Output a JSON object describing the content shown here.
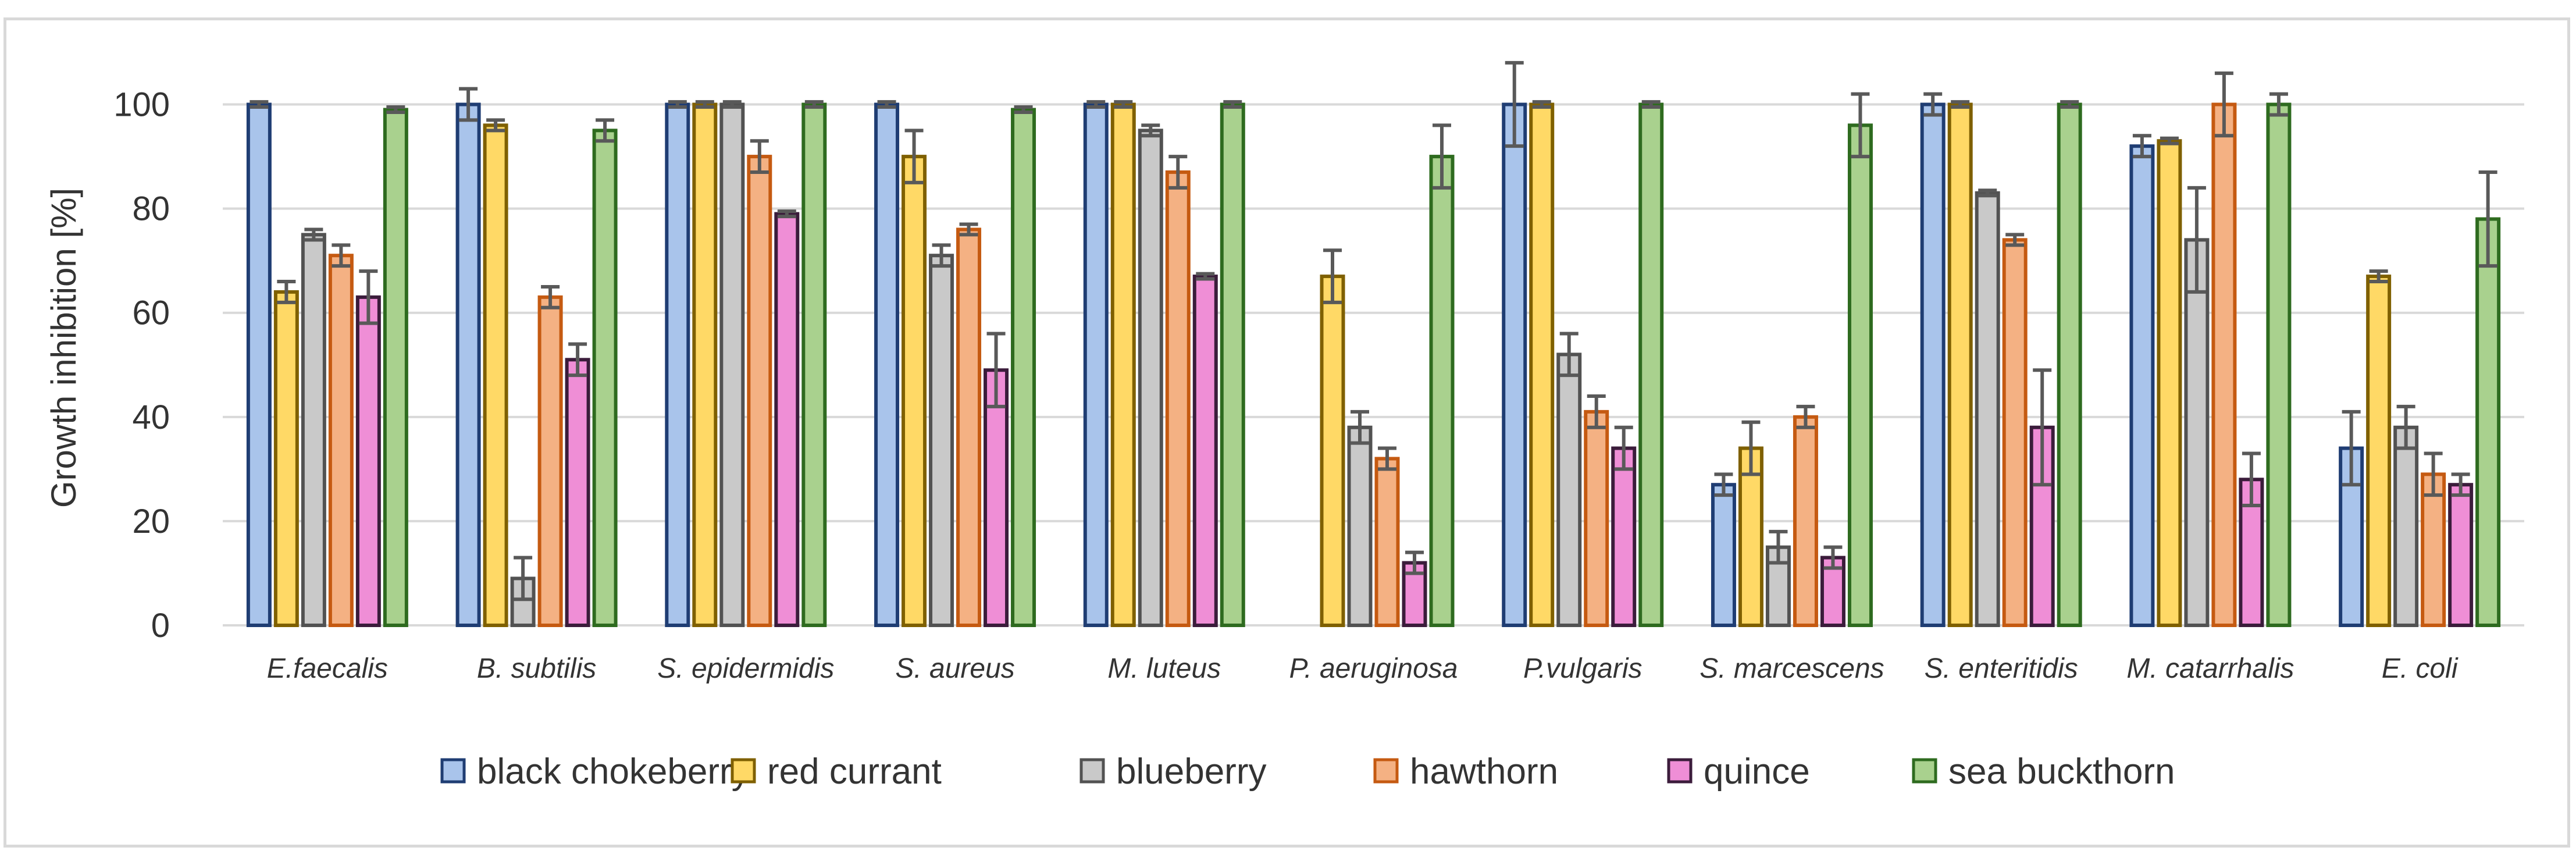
{
  "chart_data": {
    "type": "bar",
    "title": "",
    "xlabel": "",
    "ylabel": "Growth inhibition [%]",
    "ylim": [
      0,
      110
    ],
    "yticks": [
      "0",
      "20",
      "40",
      "60",
      "80",
      "100"
    ],
    "grid": true,
    "legend_position": "bottom",
    "categories": [
      "E.faecalis",
      "B. subtilis",
      "S. epidermidis",
      "S. aureus",
      "M. luteus",
      "P. aeruginosa",
      "P.vulgaris",
      "S. marcescens",
      "S. enteritidis",
      "M. catarrhalis",
      "E. coli"
    ],
    "series": [
      {
        "name": "black chokeberry",
        "fill": "#a9c4eb",
        "stroke": "#1f3d73",
        "values": [
          100,
          100,
          100,
          100,
          100,
          0,
          100,
          27,
          100,
          92,
          34
        ],
        "errors": [
          0.5,
          3,
          0.5,
          0.5,
          0.5,
          2,
          8,
          2,
          2,
          2,
          7
        ]
      },
      {
        "name": "red currant",
        "fill": "#ffd966",
        "stroke": "#7f6000",
        "values": [
          64,
          96,
          100,
          90,
          100,
          67,
          100,
          34,
          100,
          93,
          67
        ],
        "errors": [
          2,
          1,
          0.5,
          5,
          0.5,
          5,
          0.5,
          5,
          0.5,
          0.5,
          1
        ]
      },
      {
        "name": "blueberry",
        "fill": "#c9c9c9",
        "stroke": "#525252",
        "values": [
          75,
          9,
          100,
          71,
          95,
          38,
          52,
          15,
          83,
          74,
          38
        ],
        "errors": [
          1,
          4,
          0.5,
          2,
          1,
          3,
          4,
          3,
          0.5,
          10,
          4
        ]
      },
      {
        "name": "hawthorn",
        "fill": "#f4b183",
        "stroke": "#c55a11",
        "values": [
          71,
          63,
          90,
          76,
          87,
          32,
          41,
          40,
          74,
          100,
          29
        ],
        "errors": [
          2,
          2,
          3,
          1,
          3,
          2,
          3,
          2,
          1,
          6,
          4
        ]
      },
      {
        "name": "quince",
        "fill": "#ef8ed6",
        "stroke": "#3b1c3b",
        "values": [
          63,
          51,
          79,
          49,
          67,
          12,
          34,
          13,
          38,
          28,
          27
        ],
        "errors": [
          5,
          3,
          0.5,
          7,
          0.5,
          2,
          4,
          2,
          11,
          5,
          2
        ]
      },
      {
        "name": "sea buckthorn",
        "fill": "#a9d18e",
        "stroke": "#2e6b1f",
        "values": [
          99,
          95,
          100,
          99,
          100,
          90,
          100,
          96,
          100,
          100,
          78
        ],
        "errors": [
          0.5,
          2,
          0.5,
          0.5,
          0.5,
          6,
          0.5,
          6,
          0.5,
          2,
          9
        ]
      }
    ]
  }
}
